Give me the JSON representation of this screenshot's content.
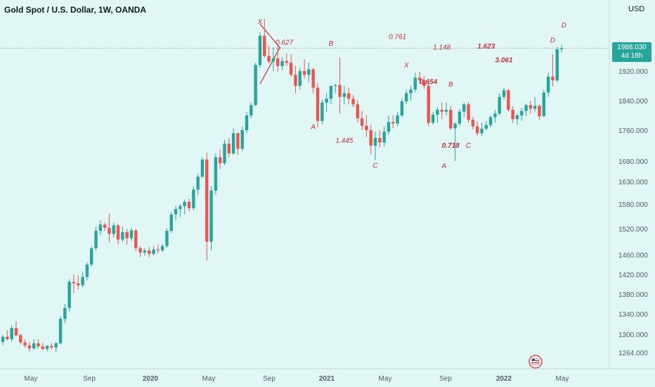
{
  "header": {
    "symbol_title": "Gold Spot / U.S. Dollar, 1W, OANDA",
    "currency": "USD"
  },
  "price_badge": {
    "price": "1988.030",
    "countdown": "4d 18h"
  },
  "colors": {
    "background": "#e0f7f5",
    "up": "#26a69a",
    "down": "#ef5350",
    "pattern": "#c2343c"
  },
  "icons": [
    "flag-icon"
  ],
  "chart_data": {
    "type": "candlestick",
    "y_ticks": [
      1264,
      1300,
      1340,
      1380,
      1420,
      1460,
      1520,
      1580,
      1630,
      1680,
      1760,
      1840,
      1920
    ],
    "y_tick_labels": [
      "1264.000",
      "1300.000",
      "1340.000",
      "1380.000",
      "1420.000",
      "1460.000",
      "1520.000",
      "1580.000",
      "1630.000",
      "1680.000",
      "1760.000",
      "1840.000",
      "1920.000"
    ],
    "x_tick_labels": [
      "May",
      "Sep",
      "2020",
      "May",
      "Sep",
      "2021",
      "May",
      "Sep",
      "2022",
      "May"
    ],
    "last_price": 1988.03,
    "patterns": [
      {
        "label": "X",
        "time": 58,
        "price": 2060,
        "bold": false
      },
      {
        "label": "0.627",
        "time": 63.5,
        "price": 1999,
        "bold": false
      },
      {
        "label": "B",
        "time": 74,
        "price": 1995,
        "bold": false
      },
      {
        "label": "A",
        "time": 70,
        "price": 1763,
        "bold": false
      },
      {
        "label": "1.445",
        "time": 77,
        "price": 1727,
        "bold": false
      },
      {
        "label": "C",
        "time": 84,
        "price": 1664,
        "bold": false
      },
      {
        "label": "0.761",
        "time": 89,
        "price": 2015,
        "bold": false
      },
      {
        "label": "X",
        "time": 91,
        "price": 1930,
        "bold": false
      },
      {
        "label": "0.654",
        "time": 96,
        "price": 1885,
        "bold": true
      },
      {
        "label": "B",
        "time": 101,
        "price": 1878,
        "bold": false
      },
      {
        "label": "0.718",
        "time": 101,
        "price": 1715,
        "bold": true
      },
      {
        "label": "C",
        "time": 105,
        "price": 1715,
        "bold": false
      },
      {
        "label": "A",
        "time": 99.5,
        "price": 1663,
        "bold": false
      },
      {
        "label": "1.148",
        "time": 99,
        "price": 1984,
        "bold": false
      },
      {
        "label": "1.623",
        "time": 109,
        "price": 1987,
        "bold": true
      },
      {
        "label": "3.061",
        "time": 113,
        "price": 1946,
        "bold": true
      },
      {
        "label": "D",
        "time": 124,
        "price": 2005,
        "bold": false
      },
      {
        "label": "D",
        "time": 126.5,
        "price": 2050,
        "bold": false
      }
    ],
    "candles": [
      [
        1285,
        1298,
        1279,
        1295
      ],
      [
        1295,
        1308,
        1288,
        1290
      ],
      [
        1290,
        1318,
        1285,
        1312
      ],
      [
        1312,
        1325,
        1296,
        1298
      ],
      [
        1298,
        1301,
        1280,
        1284
      ],
      [
        1284,
        1290,
        1273,
        1278
      ],
      [
        1278,
        1285,
        1266,
        1272
      ],
      [
        1272,
        1290,
        1270,
        1282
      ],
      [
        1282,
        1290,
        1272,
        1276
      ],
      [
        1276,
        1283,
        1268,
        1271
      ],
      [
        1271,
        1279,
        1266,
        1277
      ],
      [
        1277,
        1282,
        1270,
        1274
      ],
      [
        1274,
        1285,
        1265,
        1282
      ],
      [
        1282,
        1335,
        1280,
        1330
      ],
      [
        1330,
        1360,
        1322,
        1352
      ],
      [
        1352,
        1410,
        1345,
        1405
      ],
      [
        1405,
        1420,
        1382,
        1402
      ],
      [
        1402,
        1418,
        1390,
        1398
      ],
      [
        1398,
        1425,
        1394,
        1415
      ],
      [
        1415,
        1445,
        1408,
        1440
      ],
      [
        1440,
        1480,
        1436,
        1475
      ],
      [
        1475,
        1525,
        1470,
        1515
      ],
      [
        1515,
        1540,
        1505,
        1530
      ],
      [
        1530,
        1535,
        1515,
        1522
      ],
      [
        1522,
        1557,
        1488,
        1508
      ],
      [
        1508,
        1535,
        1500,
        1528
      ],
      [
        1528,
        1532,
        1484,
        1495
      ],
      [
        1495,
        1525,
        1490,
        1512
      ],
      [
        1512,
        1520,
        1483,
        1498
      ],
      [
        1498,
        1522,
        1492,
        1516
      ],
      [
        1516,
        1520,
        1468,
        1475
      ],
      [
        1475,
        1480,
        1455,
        1465
      ],
      [
        1465,
        1475,
        1458,
        1470
      ],
      [
        1470,
        1478,
        1455,
        1462
      ],
      [
        1462,
        1480,
        1458,
        1472
      ],
      [
        1472,
        1484,
        1464,
        1470
      ],
      [
        1470,
        1485,
        1466,
        1480
      ],
      [
        1480,
        1520,
        1476,
        1515
      ],
      [
        1515,
        1560,
        1510,
        1555
      ],
      [
        1555,
        1575,
        1540,
        1568
      ],
      [
        1568,
        1580,
        1548,
        1575
      ],
      [
        1575,
        1590,
        1555,
        1585
      ],
      [
        1585,
        1592,
        1562,
        1570
      ],
      [
        1570,
        1620,
        1565,
        1612
      ],
      [
        1612,
        1650,
        1600,
        1642
      ],
      [
        1642,
        1690,
        1638,
        1684
      ],
      [
        1684,
        1702,
        1448,
        1490
      ],
      [
        1490,
        1620,
        1470,
        1610
      ],
      [
        1610,
        1700,
        1600,
        1690
      ],
      [
        1690,
        1710,
        1660,
        1675
      ],
      [
        1675,
        1735,
        1670,
        1725
      ],
      [
        1725,
        1740,
        1690,
        1700
      ],
      [
        1700,
        1765,
        1696,
        1752
      ],
      [
        1752,
        1755,
        1695,
        1712
      ],
      [
        1712,
        1770,
        1706,
        1760
      ],
      [
        1760,
        1810,
        1752,
        1800
      ],
      [
        1800,
        1835,
        1792,
        1828
      ],
      [
        1828,
        1945,
        1825,
        1938
      ],
      [
        1938,
        2035,
        1930,
        2025
      ],
      [
        2025,
        2075,
        1960,
        1965
      ],
      [
        1965,
        1995,
        1942,
        1948
      ],
      [
        1948,
        1990,
        1920,
        1958
      ],
      [
        1958,
        1995,
        1918,
        1935
      ],
      [
        1935,
        1962,
        1922,
        1950
      ],
      [
        1950,
        1972,
        1935,
        1945
      ],
      [
        1945,
        1970,
        1905,
        1910
      ],
      [
        1910,
        1935,
        1860,
        1880
      ],
      [
        1880,
        1930,
        1870,
        1920
      ],
      [
        1920,
        1955,
        1900,
        1910
      ],
      [
        1910,
        1945,
        1890,
        1925
      ],
      [
        1925,
        1930,
        1860,
        1875
      ],
      [
        1875,
        1888,
        1768,
        1785
      ],
      [
        1785,
        1842,
        1775,
        1835
      ],
      [
        1835,
        1860,
        1810,
        1845
      ],
      [
        1845,
        1875,
        1830,
        1880
      ],
      [
        1880,
        1885,
        1860,
        1882
      ],
      [
        1882,
        1960,
        1805,
        1850
      ],
      [
        1850,
        1880,
        1830,
        1860
      ],
      [
        1860,
        1875,
        1830,
        1845
      ],
      [
        1845,
        1855,
        1822,
        1830
      ],
      [
        1830,
        1842,
        1782,
        1792
      ],
      [
        1792,
        1812,
        1760,
        1772
      ],
      [
        1772,
        1800,
        1742,
        1760
      ],
      [
        1760,
        1775,
        1698,
        1720
      ],
      [
        1720,
        1756,
        1682,
        1740
      ],
      [
        1740,
        1760,
        1715,
        1728
      ],
      [
        1728,
        1770,
        1718,
        1756
      ],
      [
        1756,
        1800,
        1748,
        1782
      ],
      [
        1782,
        1800,
        1765,
        1778
      ],
      [
        1778,
        1810,
        1770,
        1800
      ],
      [
        1800,
        1845,
        1795,
        1838
      ],
      [
        1838,
        1870,
        1830,
        1860
      ],
      [
        1860,
        1880,
        1840,
        1870
      ],
      [
        1870,
        1915,
        1862,
        1902
      ],
      [
        1902,
        1918,
        1885,
        1895
      ],
      [
        1895,
        1906,
        1872,
        1880
      ],
      [
        1880,
        1895,
        1770,
        1780
      ],
      [
        1780,
        1810,
        1775,
        1802
      ],
      [
        1802,
        1822,
        1780,
        1815
      ],
      [
        1815,
        1835,
        1790,
        1810
      ],
      [
        1810,
        1835,
        1800,
        1815
      ],
      [
        1815,
        1826,
        1760,
        1765
      ],
      [
        1765,
        1780,
        1680,
        1778
      ],
      [
        1778,
        1818,
        1772,
        1810
      ],
      [
        1810,
        1834,
        1795,
        1830
      ],
      [
        1830,
        1836,
        1780,
        1788
      ],
      [
        1788,
        1795,
        1762,
        1770
      ],
      [
        1770,
        1785,
        1746,
        1752
      ],
      [
        1752,
        1780,
        1745,
        1764
      ],
      [
        1764,
        1785,
        1760,
        1774
      ],
      [
        1774,
        1800,
        1768,
        1795
      ],
      [
        1795,
        1815,
        1780,
        1805
      ],
      [
        1805,
        1860,
        1800,
        1850
      ],
      [
        1850,
        1875,
        1843,
        1868
      ],
      [
        1868,
        1872,
        1810,
        1815
      ],
      [
        1815,
        1825,
        1780,
        1790
      ],
      [
        1790,
        1805,
        1775,
        1800
      ],
      [
        1800,
        1820,
        1785,
        1812
      ],
      [
        1812,
        1832,
        1798,
        1828
      ],
      [
        1828,
        1840,
        1804,
        1818
      ],
      [
        1818,
        1850,
        1810,
        1826
      ],
      [
        1826,
        1830,
        1788,
        1798
      ],
      [
        1798,
        1870,
        1795,
        1862
      ],
      [
        1862,
        1915,
        1850,
        1905
      ],
      [
        1905,
        1970,
        1878,
        1895
      ],
      [
        1895,
        1992,
        1890,
        1985
      ],
      [
        1985,
        1998,
        1975,
        1988
      ]
    ]
  }
}
